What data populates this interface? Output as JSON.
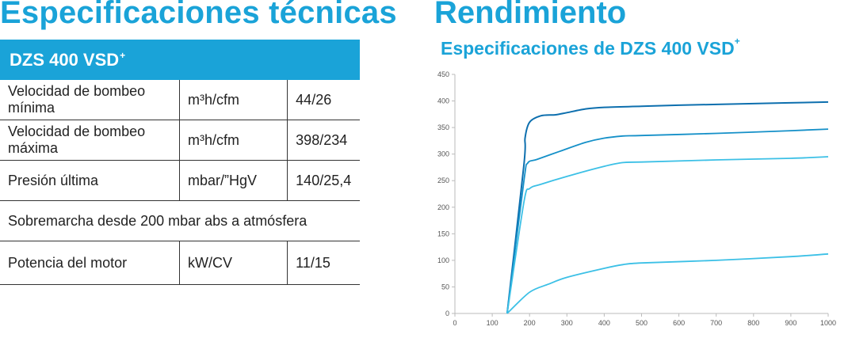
{
  "specs": {
    "title": "Especificaciones técnicas",
    "model": "DZS 400 VSD",
    "model_sup": "+",
    "rows": [
      {
        "label": "Velocidad de bombeo mínima",
        "unit": "m³h/cfm",
        "value": "44/26"
      },
      {
        "label": "Velocidad de bombeo máxima",
        "unit": "m³h/cfm",
        "value": "398/234"
      },
      {
        "label": "Presión última",
        "unit": "mbar/”HgV",
        "value": "140/25,4"
      },
      {
        "label": "Sobremarcha desde 200 mbar abs a atmósfera"
      },
      {
        "label": "Potencia del motor",
        "unit": "kW/CV",
        "value": "11/15"
      }
    ]
  },
  "performance": {
    "title": "Rendimiento",
    "chart_title": "Especificaciones de DZS 400 VSD",
    "chart_title_sup": "+"
  },
  "colors": {
    "accent": "#1aa3d8",
    "series": [
      "#0d6fae",
      "#1590c8",
      "#3cc0e6",
      "#3cc0e6"
    ]
  },
  "chart_data": {
    "type": "line",
    "title": "Especificaciones de DZS 400 VSD+",
    "xlabel": "",
    "ylabel": "",
    "xlim": [
      0,
      1000
    ],
    "ylim": [
      0,
      450
    ],
    "x_ticks": [
      "0",
      "100",
      "200",
      "300",
      "400",
      "500",
      "600",
      "700",
      "800",
      "900",
      "1000"
    ],
    "y_ticks": [
      "0",
      "50",
      "100",
      "150",
      "200",
      "250",
      "300",
      "350",
      "400",
      "450"
    ],
    "y_tick_labels": [
      "0",
      "50",
      "100",
      "150",
      "200",
      "250",
      "300",
      "350",
      "400",
      "450"
    ],
    "grid": false,
    "series": [
      {
        "points": [
          [
            140,
            0
          ],
          [
            185,
            280
          ],
          [
            188,
            330
          ],
          [
            200,
            360
          ],
          [
            230,
            372
          ],
          [
            270,
            374
          ],
          [
            300,
            378
          ],
          [
            350,
            385
          ],
          [
            400,
            388
          ],
          [
            500,
            390
          ],
          [
            600,
            392
          ],
          [
            800,
            395
          ],
          [
            1000,
            398
          ]
        ]
      },
      {
        "points": [
          [
            140,
            0
          ],
          [
            185,
            250
          ],
          [
            195,
            283
          ],
          [
            220,
            290
          ],
          [
            280,
            305
          ],
          [
            350,
            322
          ],
          [
            400,
            330
          ],
          [
            450,
            334
          ],
          [
            500,
            335
          ],
          [
            700,
            339
          ],
          [
            900,
            344
          ],
          [
            1000,
            347
          ]
        ]
      },
      {
        "points": [
          [
            140,
            0
          ],
          [
            185,
            210
          ],
          [
            200,
            235
          ],
          [
            230,
            243
          ],
          [
            300,
            258
          ],
          [
            400,
            277
          ],
          [
            450,
            284
          ],
          [
            500,
            285
          ],
          [
            700,
            289
          ],
          [
            900,
            292
          ],
          [
            1000,
            295
          ]
        ]
      },
      {
        "points": [
          [
            140,
            0
          ],
          [
            200,
            40
          ],
          [
            250,
            55
          ],
          [
            300,
            68
          ],
          [
            400,
            85
          ],
          [
            450,
            92
          ],
          [
            500,
            95
          ],
          [
            700,
            100
          ],
          [
            900,
            107
          ],
          [
            1000,
            112
          ]
        ]
      }
    ]
  }
}
